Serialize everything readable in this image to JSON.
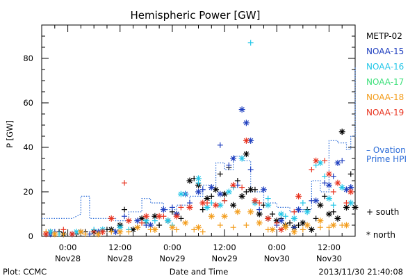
{
  "chart_data": {
    "type": "scatter",
    "title": "Hemispheric Power [GW]",
    "ylabel": "P [GW]",
    "xlabel": "Date and Time",
    "footer_left": "Plot: CCMC",
    "footer_right": "2013/11/30 21:40:08",
    "ylim": [
      0,
      95
    ],
    "xlim": [
      -6,
      66
    ],
    "y_ticks": [
      0,
      20,
      40,
      60,
      80
    ],
    "x_ticks": [
      {
        "h": 0,
        "time": "0:00",
        "date": "Nov28"
      },
      {
        "h": 12,
        "time": "12:00",
        "date": "Nov28"
      },
      {
        "h": 24,
        "time": "0:00",
        "date": "Nov29"
      },
      {
        "h": 36,
        "time": "12:00",
        "date": "Nov29"
      },
      {
        "h": 48,
        "time": "0:00",
        "date": "Nov30"
      },
      {
        "h": 60,
        "time": "12:00",
        "date": "Nov30"
      }
    ],
    "grid": false,
    "legend_position": "right",
    "marker_legend": {
      "south": "+ south",
      "north": "* north"
    },
    "x_unit": "hours since 2013-11-28 00:00 UT",
    "series": [
      {
        "name": "METP-02",
        "color": "#000000",
        "south": [
          [
            -5,
            1
          ],
          [
            -2,
            2
          ],
          [
            2,
            1
          ],
          [
            4,
            2
          ],
          [
            9,
            3
          ],
          [
            13,
            12
          ],
          [
            16,
            4
          ],
          [
            18,
            6
          ],
          [
            21,
            5
          ],
          [
            24,
            11
          ],
          [
            26,
            8
          ],
          [
            29,
            26
          ],
          [
            31,
            12
          ],
          [
            33,
            18
          ],
          [
            35,
            28
          ],
          [
            37,
            31
          ],
          [
            39,
            25
          ],
          [
            41,
            20
          ],
          [
            43,
            21
          ],
          [
            45,
            14
          ],
          [
            47,
            10
          ],
          [
            49,
            8
          ],
          [
            51,
            6
          ],
          [
            53,
            5
          ],
          [
            55,
            12
          ],
          [
            57,
            8
          ],
          [
            59,
            18
          ],
          [
            61,
            11
          ],
          [
            63,
            47
          ],
          [
            65,
            28
          ]
        ],
        "north": [
          [
            -4,
            2
          ],
          [
            -1,
            1
          ],
          [
            3,
            2
          ],
          [
            6,
            2
          ],
          [
            10,
            3
          ],
          [
            12,
            5
          ],
          [
            15,
            3
          ],
          [
            17,
            8
          ],
          [
            20,
            9
          ],
          [
            23,
            7
          ],
          [
            25,
            10
          ],
          [
            28,
            25
          ],
          [
            30,
            23
          ],
          [
            32,
            17
          ],
          [
            34,
            21
          ],
          [
            36,
            19
          ],
          [
            38,
            14
          ],
          [
            40,
            18
          ],
          [
            41,
            37
          ],
          [
            42,
            21
          ],
          [
            44,
            10
          ],
          [
            46,
            8
          ],
          [
            48,
            7
          ],
          [
            50,
            5
          ],
          [
            52,
            4
          ],
          [
            54,
            6
          ],
          [
            56,
            3
          ],
          [
            58,
            14
          ],
          [
            60,
            10
          ],
          [
            62,
            8
          ],
          [
            63,
            47
          ],
          [
            64,
            13
          ],
          [
            66,
            13
          ]
        ]
      },
      {
        "name": "NOAA-15",
        "color": "#1f3fbf",
        "south": [
          [
            -3,
            2
          ],
          [
            5,
            1
          ],
          [
            13,
            9
          ],
          [
            18,
            5
          ],
          [
            24,
            13
          ],
          [
            28,
            15
          ],
          [
            31,
            21
          ],
          [
            35,
            41
          ],
          [
            37,
            32
          ],
          [
            39,
            23
          ],
          [
            42,
            30
          ],
          [
            44,
            12
          ],
          [
            48,
            5
          ],
          [
            52,
            4
          ],
          [
            56,
            16
          ],
          [
            59,
            24
          ],
          [
            61,
            27
          ],
          [
            63,
            34
          ],
          [
            65,
            22
          ]
        ],
        "north": [
          [
            -4,
            1
          ],
          [
            1,
            1
          ],
          [
            7,
            2
          ],
          [
            11,
            2
          ],
          [
            16,
            7
          ],
          [
            19,
            5
          ],
          [
            22,
            12
          ],
          [
            25,
            10
          ],
          [
            27,
            19
          ],
          [
            30,
            20
          ],
          [
            33,
            22
          ],
          [
            35,
            19
          ],
          [
            38,
            35
          ],
          [
            40,
            57
          ],
          [
            41,
            51
          ],
          [
            42,
            43
          ],
          [
            45,
            21
          ],
          [
            49,
            7
          ],
          [
            53,
            12
          ],
          [
            57,
            16
          ],
          [
            60,
            23
          ],
          [
            62,
            33
          ],
          [
            64,
            21
          ],
          [
            65,
            22
          ]
        ]
      },
      {
        "name": "NOAA-16",
        "color": "#22c6e8",
        "south": [
          [
            -2,
            1
          ],
          [
            6,
            3
          ],
          [
            14,
            3
          ],
          [
            20,
            7
          ],
          [
            24,
            5
          ],
          [
            27,
            19
          ],
          [
            30,
            24
          ],
          [
            33,
            15
          ],
          [
            36,
            16
          ],
          [
            38,
            22
          ],
          [
            42,
            87
          ],
          [
            46,
            17
          ],
          [
            50,
            9
          ],
          [
            54,
            15
          ],
          [
            57,
            32
          ],
          [
            59,
            27
          ],
          [
            61,
            14
          ]
        ],
        "north": [
          [
            -4,
            2
          ],
          [
            2,
            2
          ],
          [
            8,
            3
          ],
          [
            12,
            4
          ],
          [
            18,
            7
          ],
          [
            23,
            7
          ],
          [
            26,
            19
          ],
          [
            30,
            26
          ],
          [
            32,
            13
          ],
          [
            35,
            14
          ],
          [
            37,
            20
          ],
          [
            40,
            35
          ],
          [
            43,
            15
          ],
          [
            46,
            14
          ],
          [
            49,
            10
          ],
          [
            52,
            8
          ],
          [
            55,
            11
          ],
          [
            58,
            33
          ],
          [
            60,
            17
          ],
          [
            63,
            22
          ],
          [
            65,
            15
          ]
        ]
      },
      {
        "name": "NOAA-17",
        "color": "#3ce07a",
        "south": [],
        "north": []
      },
      {
        "name": "NOAA-18",
        "color": "#f39c1a",
        "south": [
          [
            -5,
            2
          ],
          [
            -1,
            1
          ],
          [
            4,
            1
          ],
          [
            10,
            2
          ],
          [
            14,
            2
          ],
          [
            19,
            3
          ],
          [
            25,
            3
          ],
          [
            29,
            3
          ],
          [
            31,
            2
          ],
          [
            35,
            5
          ],
          [
            38,
            4
          ],
          [
            41,
            5
          ],
          [
            46,
            3
          ],
          [
            50,
            5
          ],
          [
            54,
            3
          ],
          [
            58,
            4
          ],
          [
            60,
            4
          ],
          [
            63,
            5
          ]
        ],
        "north": [
          [
            -3,
            1
          ],
          [
            3,
            2
          ],
          [
            7,
            1
          ],
          [
            12,
            2
          ],
          [
            16,
            4
          ],
          [
            20,
            3
          ],
          [
            24,
            4
          ],
          [
            27,
            6
          ],
          [
            30,
            4
          ],
          [
            33,
            9
          ],
          [
            36,
            9
          ],
          [
            39,
            11
          ],
          [
            42,
            11
          ],
          [
            44,
            6
          ],
          [
            47,
            3
          ],
          [
            50,
            4
          ],
          [
            52,
            2
          ],
          [
            55,
            5
          ],
          [
            58,
            7
          ],
          [
            61,
            5
          ],
          [
            64,
            5
          ]
        ]
      },
      {
        "name": "NOAA-19",
        "color": "#e8331f",
        "south": [
          [
            -1,
            3
          ],
          [
            6,
            2
          ],
          [
            13,
            24
          ],
          [
            17,
            6
          ],
          [
            22,
            9
          ],
          [
            26,
            13
          ],
          [
            32,
            15
          ],
          [
            36,
            16
          ],
          [
            40,
            22
          ],
          [
            44,
            15
          ],
          [
            48,
            6
          ],
          [
            52,
            11
          ],
          [
            56,
            30
          ],
          [
            59,
            34
          ],
          [
            61,
            20
          ],
          [
            64,
            15
          ]
        ],
        "north": [
          [
            -5,
            1
          ],
          [
            1,
            1
          ],
          [
            8,
            2
          ],
          [
            10,
            8
          ],
          [
            14,
            7
          ],
          [
            18,
            9
          ],
          [
            21,
            9
          ],
          [
            25,
            9
          ],
          [
            28,
            13
          ],
          [
            31,
            15
          ],
          [
            34,
            14
          ],
          [
            38,
            23
          ],
          [
            41,
            43
          ],
          [
            43,
            16
          ],
          [
            46,
            8
          ],
          [
            49,
            3
          ],
          [
            53,
            18
          ],
          [
            57,
            34
          ],
          [
            60,
            28
          ],
          [
            62,
            24
          ],
          [
            65,
            20
          ]
        ]
      }
    ],
    "ovation": {
      "name": "Ovation Prime HPI",
      "legend_lines": [
        "– Ovation",
        "Prime HPI"
      ],
      "color": "#2d6dd8",
      "points": [
        [
          -6,
          8
        ],
        [
          -3,
          8
        ],
        [
          -2,
          8
        ],
        [
          1,
          8
        ],
        [
          1,
          8
        ],
        [
          3,
          10
        ],
        [
          3,
          18
        ],
        [
          5,
          18
        ],
        [
          5,
          8
        ],
        [
          8,
          8
        ],
        [
          8,
          8
        ],
        [
          11,
          8
        ],
        [
          11,
          7
        ],
        [
          14,
          7
        ],
        [
          14,
          11
        ],
        [
          17,
          11
        ],
        [
          17,
          17
        ],
        [
          19,
          17
        ],
        [
          19,
          15
        ],
        [
          22,
          15
        ],
        [
          22,
          12
        ],
        [
          25,
          12
        ],
        [
          25,
          14
        ],
        [
          28,
          14
        ],
        [
          28,
          18
        ],
        [
          31,
          18
        ],
        [
          31,
          23
        ],
        [
          34,
          23
        ],
        [
          34,
          33
        ],
        [
          36,
          33
        ],
        [
          36,
          30
        ],
        [
          38,
          30
        ],
        [
          38,
          36
        ],
        [
          40,
          36
        ],
        [
          40,
          34
        ],
        [
          42,
          34
        ],
        [
          42,
          20
        ],
        [
          45,
          20
        ],
        [
          45,
          15
        ],
        [
          48,
          15
        ],
        [
          48,
          13
        ],
        [
          51,
          13
        ],
        [
          51,
          11
        ],
        [
          54,
          11
        ],
        [
          54,
          12
        ],
        [
          56,
          12
        ],
        [
          56,
          25
        ],
        [
          58,
          25
        ],
        [
          58,
          20
        ],
        [
          60,
          20
        ],
        [
          60,
          43
        ],
        [
          62,
          43
        ],
        [
          62,
          42
        ],
        [
          64,
          42
        ],
        [
          64,
          39
        ],
        [
          65,
          39
        ],
        [
          65,
          45
        ],
        [
          66,
          45
        ],
        [
          66,
          76
        ]
      ]
    }
  }
}
